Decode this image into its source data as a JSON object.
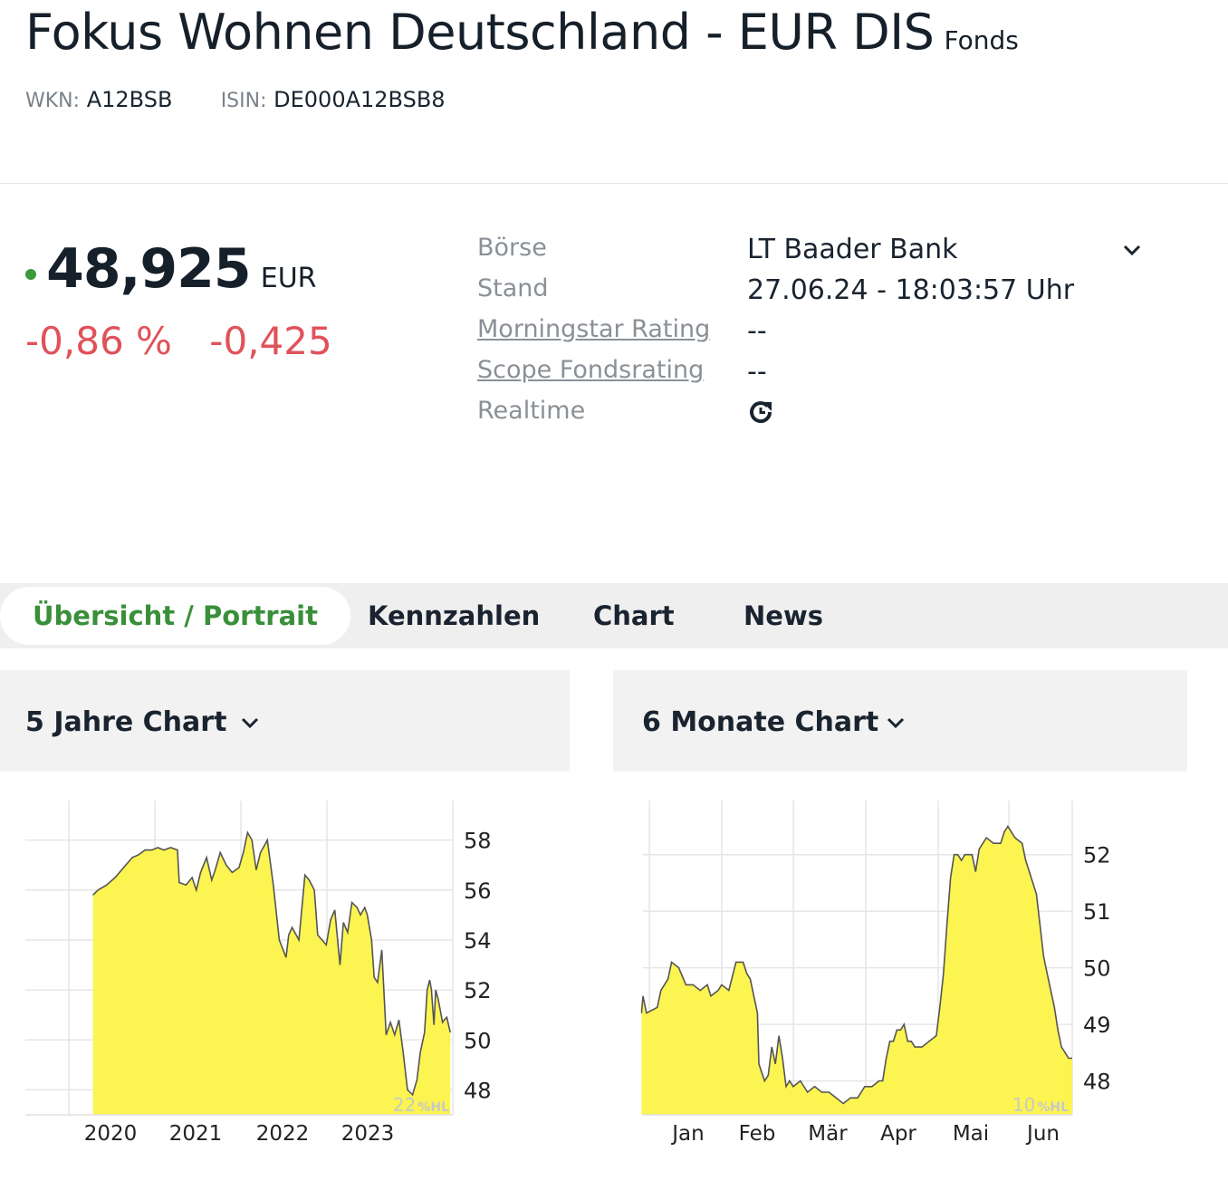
{
  "header": {
    "title": "Fokus Wohnen Deutschland - EUR DIS",
    "type": "Fonds",
    "wkn_label": "WKN:",
    "wkn": "A12BSB",
    "isin_label": "ISIN:",
    "isin": "DE000A12BSB8"
  },
  "quote": {
    "price": "48,925",
    "currency": "EUR",
    "change_pct": "-0,86 %",
    "change_abs": "-0,425",
    "status_color": "#3c9a3c",
    "negative_color": "#e0525a"
  },
  "info": {
    "boerse_label": "Börse",
    "boerse_value": "LT Baader Bank",
    "stand_label": "Stand",
    "stand_value": "27.06.24 - 18:03:57 Uhr",
    "morningstar_label": "Morningstar Rating",
    "morningstar_value": "--",
    "scope_label": "Scope Fondsrating",
    "scope_value": "--",
    "realtime_label": "Realtime",
    "realtime_icon": "realtime-refresh-icon"
  },
  "tabs": [
    {
      "label": "Übersicht / Portrait",
      "active": true
    },
    {
      "label": "Kennzahlen",
      "active": false
    },
    {
      "label": "Chart",
      "active": false
    },
    {
      "label": "News",
      "active": false
    }
  ],
  "panels": {
    "five_year_title": "5 Jahre Chart",
    "six_month_title": "6 Monate Chart"
  },
  "chart_data": [
    {
      "type": "area",
      "fill_color": "#fcf450",
      "line_color": "#555555",
      "y_axis_position": "right",
      "x_ticks": [
        "2020",
        "2021",
        "2022",
        "2023"
      ],
      "y_ticks": [
        48,
        50,
        52,
        54,
        56,
        58
      ],
      "ylim": [
        47.0,
        59.0
      ],
      "xlim": [
        2019.5,
        2024.5
      ],
      "badge_value": "22",
      "badge_unit": "%HL",
      "x": [
        2020.29,
        2020.35,
        2020.45,
        2020.55,
        2020.65,
        2020.75,
        2020.82,
        2020.9,
        2020.98,
        2021.05,
        2021.12,
        2021.2,
        2021.28,
        2021.3,
        2021.38,
        2021.45,
        2021.5,
        2021.55,
        2021.62,
        2021.68,
        2021.72,
        2021.78,
        2021.85,
        2021.92,
        2022.0,
        2022.05,
        2022.1,
        2022.15,
        2022.2,
        2022.25,
        2022.3,
        2022.33,
        2022.4,
        2022.47,
        2022.55,
        2022.58,
        2022.62,
        2022.7,
        2022.77,
        2022.82,
        2022.88,
        2022.92,
        2022.97,
        2023.02,
        2023.07,
        2023.12,
        2023.18,
        2023.22,
        2023.27,
        2023.32,
        2023.38,
        2023.42,
        2023.47,
        2023.5,
        2023.55,
        2023.58,
        2023.62,
        2023.67,
        2023.72,
        2023.77,
        2023.82,
        2023.87,
        2023.92,
        2023.97,
        2024.03,
        2024.08,
        2024.12,
        2024.17,
        2024.2,
        2024.23,
        2024.25,
        2024.28,
        2024.3,
        2024.33,
        2024.38,
        2024.4,
        2024.43,
        2024.47
      ],
      "y": [
        55.8,
        56.0,
        56.2,
        56.5,
        56.9,
        57.3,
        57.4,
        57.6,
        57.6,
        57.7,
        57.6,
        57.7,
        57.6,
        56.3,
        56.2,
        56.5,
        56.0,
        56.7,
        57.3,
        56.4,
        56.8,
        57.5,
        57.0,
        56.7,
        56.9,
        57.5,
        58.3,
        58.0,
        56.8,
        57.5,
        57.8,
        58.0,
        56.2,
        54.0,
        53.3,
        54.2,
        54.5,
        54.0,
        56.6,
        56.4,
        56.0,
        54.2,
        54.0,
        53.8,
        54.8,
        55.2,
        53.0,
        54.7,
        54.3,
        55.5,
        55.3,
        55.0,
        55.3,
        55.0,
        54.0,
        52.5,
        52.3,
        53.6,
        50.2,
        50.7,
        50.2,
        50.8,
        49.5,
        48.0,
        47.8,
        48.4,
        49.5,
        50.3,
        52.0,
        52.4,
        52.0,
        50.6,
        52.0,
        51.6,
        50.7,
        50.8,
        50.9,
        50.3
      ]
    },
    {
      "type": "area",
      "fill_color": "#fcf450",
      "line_color": "#555555",
      "y_axis_position": "right",
      "x_ticks": [
        "Jan",
        "Feb",
        "Mär",
        "Apr",
        "Mai",
        "Jun"
      ],
      "y_ticks": [
        48,
        49,
        50,
        51,
        52
      ],
      "ylim": [
        47.4,
        52.7
      ],
      "xlim": [
        -0.6,
        5.4
      ],
      "badge_value": "10",
      "badge_unit": "%HL",
      "x": [
        -0.62,
        -0.6,
        -0.55,
        -0.4,
        -0.35,
        -0.25,
        -0.2,
        -0.1,
        0.0,
        0.1,
        0.2,
        0.3,
        0.35,
        0.45,
        0.5,
        0.6,
        0.7,
        0.8,
        0.85,
        0.9,
        0.95,
        1.0,
        1.02,
        1.1,
        1.15,
        1.2,
        1.25,
        1.3,
        1.35,
        1.4,
        1.45,
        1.5,
        1.6,
        1.7,
        1.8,
        1.9,
        2.0,
        2.1,
        2.2,
        2.3,
        2.4,
        2.45,
        2.5,
        2.6,
        2.7,
        2.75,
        2.8,
        2.85,
        2.9,
        2.95,
        3.0,
        3.05,
        3.1,
        3.15,
        3.2,
        3.3,
        3.4,
        3.5,
        3.55,
        3.6,
        3.65,
        3.7,
        3.75,
        3.8,
        3.85,
        3.9,
        4.0,
        4.05,
        4.1,
        4.15,
        4.2,
        4.3,
        4.4,
        4.45,
        4.5,
        4.55,
        4.6,
        4.7,
        4.75,
        4.8,
        4.85,
        4.9,
        5.0,
        5.05,
        5.1,
        5.15,
        5.2,
        5.25,
        5.3,
        5.35,
        5.4
      ],
      "y": [
        49.2,
        49.5,
        49.2,
        49.3,
        49.6,
        49.8,
        50.1,
        50.0,
        49.7,
        49.7,
        49.6,
        49.7,
        49.5,
        49.6,
        49.7,
        49.6,
        50.1,
        50.1,
        49.9,
        49.8,
        49.5,
        49.2,
        48.3,
        48.0,
        48.1,
        48.6,
        48.3,
        48.8,
        48.4,
        47.9,
        48.0,
        47.9,
        48.0,
        47.8,
        47.9,
        47.8,
        47.8,
        47.7,
        47.6,
        47.7,
        47.7,
        47.8,
        47.9,
        47.9,
        48.0,
        48.0,
        48.4,
        48.7,
        48.7,
        48.9,
        48.9,
        49.0,
        48.7,
        48.7,
        48.6,
        48.6,
        48.7,
        48.8,
        49.3,
        49.9,
        50.8,
        51.6,
        52.0,
        52.0,
        51.9,
        52.0,
        52.0,
        51.7,
        52.1,
        52.2,
        52.3,
        52.2,
        52.2,
        52.4,
        52.5,
        52.4,
        52.3,
        52.2,
        51.9,
        51.7,
        51.5,
        51.3,
        50.2,
        49.9,
        49.6,
        49.3,
        48.9,
        48.6,
        48.5,
        48.4,
        48.4
      ]
    }
  ]
}
